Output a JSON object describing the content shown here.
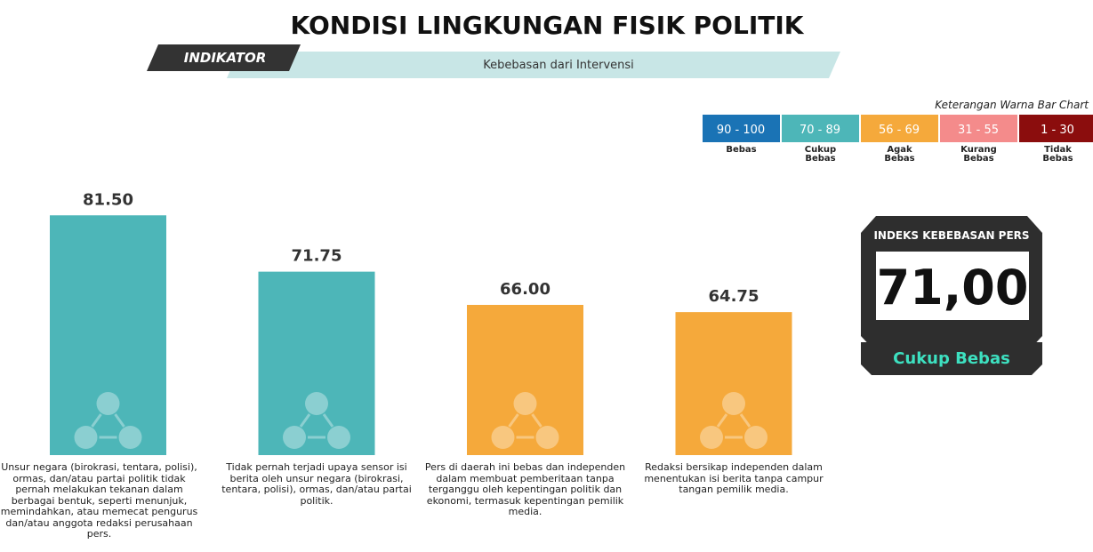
{
  "chart_data": {
    "type": "bar",
    "title": "KONDISI LINGKUNGAN FISIK POLITIK",
    "indicator_label": "INDIKATOR",
    "indicator": "Kebebasan dari Intervensi",
    "categories": [
      "Unsur negara (birokrasi, tentara, polisi), ormas, dan/atau partai politik tidak pernah melakukan tekanan dalam berbagai bentuk, seperti menunjuk, memindahkan, atau memecat pengurus dan/atau anggota redaksi perusahaan pers.",
      "Tidak pernah terjadi upaya sensor isi berita oleh unsur negara (birokrasi, tentara, polisi), ormas, dan/atau partai politik.",
      "Pers di daerah ini bebas dan independen dalam membuat pemberitaan tanpa terganggu oleh kepentingan politik dan ekonomi, termasuk kepentingan pemilik media.",
      "Redaksi bersikap independen dalam menentukan isi berita tanpa campur tangan pemilik media."
    ],
    "values": [
      81.5,
      71.75,
      66,
      64.75
    ],
    "value_labels": [
      "81.50",
      "71.75",
      "66.00",
      "64.75"
    ],
    "colors": [
      "#4db6b8",
      "#4db6b8",
      "#f5a93b",
      "#f5a93b"
    ],
    "ylim": [
      40,
      100
    ],
    "legend": {
      "title": "Keterangan Warna Bar Chart",
      "items": [
        {
          "range": "90 - 100",
          "label": "Bebas",
          "color": "#1a73b5"
        },
        {
          "range": "70 - 89",
          "label": "Cukup Bebas",
          "color": "#4db6b8"
        },
        {
          "range": "56 - 69",
          "label": "Agak Bebas",
          "color": "#f5a93b"
        },
        {
          "range": "31 - 55",
          "label": "Kurang Bebas",
          "color": "#f48b8b"
        },
        {
          "range": "1 - 30",
          "label": "Tidak Bebas",
          "color": "#8b0d0d"
        }
      ]
    },
    "index": {
      "title": "INDEKS KEBEBASAN PERS",
      "score": {
        "value": 71,
        "label": "71,00"
      },
      "category": "Cukup Bebas"
    }
  }
}
